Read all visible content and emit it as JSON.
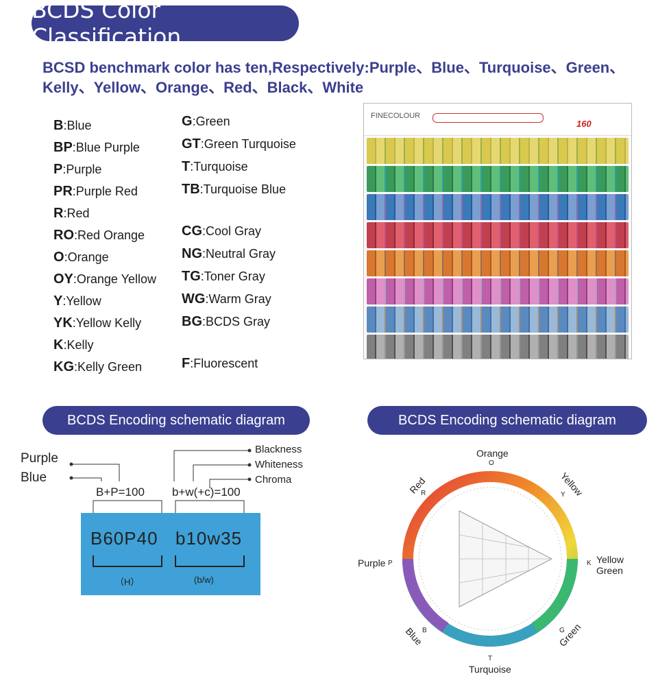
{
  "header": {
    "title": "BCDS Color Classification",
    "subtitle": "BCSD benchmark color has ten,Respectively:Purple、Blue、Turquoise、Green、Kelly、Yellow、Orange、Red、Black、White"
  },
  "codes_left": [
    {
      "code": "B",
      "name": ":Blue"
    },
    {
      "code": "BP",
      "name": ":Blue Purple"
    },
    {
      "code": "P",
      "name": ":Purple"
    },
    {
      "code": "PR",
      "name": ":Purple Red"
    },
    {
      "code": "R",
      "name": ":Red"
    },
    {
      "code": "RO",
      "name": ":Red Orange"
    },
    {
      "code": "O",
      "name": ":Orange"
    },
    {
      "code": "OY",
      "name": ":Orange Yellow"
    },
    {
      "code": "Y",
      "name": ":Yellow"
    },
    {
      "code": "YK",
      "name": ":Yellow Kelly"
    },
    {
      "code": "K",
      "name": ":Kelly"
    },
    {
      "code": "KG",
      "name": ":Kelly Green"
    }
  ],
  "codes_right": [
    {
      "code": "G",
      "name": ":Green"
    },
    {
      "code": "GT",
      "name": ":Green Turquoise"
    },
    {
      "code": "T",
      "name": ":Turquoise"
    },
    {
      "code": "TB",
      "name": ":Turquoise Blue"
    },
    {
      "code": "CG",
      "name": ":Cool Gray"
    },
    {
      "code": "NG",
      "name": ":Neutral Gray"
    },
    {
      "code": "TG",
      "name": ":Toner  Gray"
    },
    {
      "code": "WG",
      "name": ":Warm Gray"
    },
    {
      "code": "BG",
      "name": ":BCDS Gray"
    },
    {
      "code": "F",
      "name": ":Fluorescent"
    }
  ],
  "photo": {
    "brand": "FINECOLOUR",
    "count": "160"
  },
  "schematic_left": {
    "title": "BCDS Encoding schematic diagram",
    "purple": "Purple",
    "blue": "Blue",
    "blackness": "Blackness",
    "whiteness": "Whiteness",
    "chroma": "Chroma",
    "formula_hue": "B+P=100",
    "formula_bw": "b+w(+c)=100",
    "code_hue": "B60P40",
    "code_bw": "b10w35",
    "hue_label": "（H）",
    "bw_label": "(b/w)"
  },
  "schematic_right": {
    "title": "BCDS Encoding schematic diagram",
    "orange": "Orange",
    "orange_code": "O",
    "yellow": "Yellow",
    "yellow_code": "Y",
    "red": "Red",
    "red_code": "R",
    "yellow_green": "Yellow\nGreen",
    "yellow_green_code": "K",
    "purple": "Purple",
    "purple_code": "P",
    "blue": "Blue",
    "blue_code": "B",
    "green": "Green",
    "green_code": "G",
    "turquoise": "Turquoise",
    "turquoise_code": "T"
  },
  "colors": {
    "pill": "#3b3f8f",
    "box": "#3fa1d8"
  }
}
